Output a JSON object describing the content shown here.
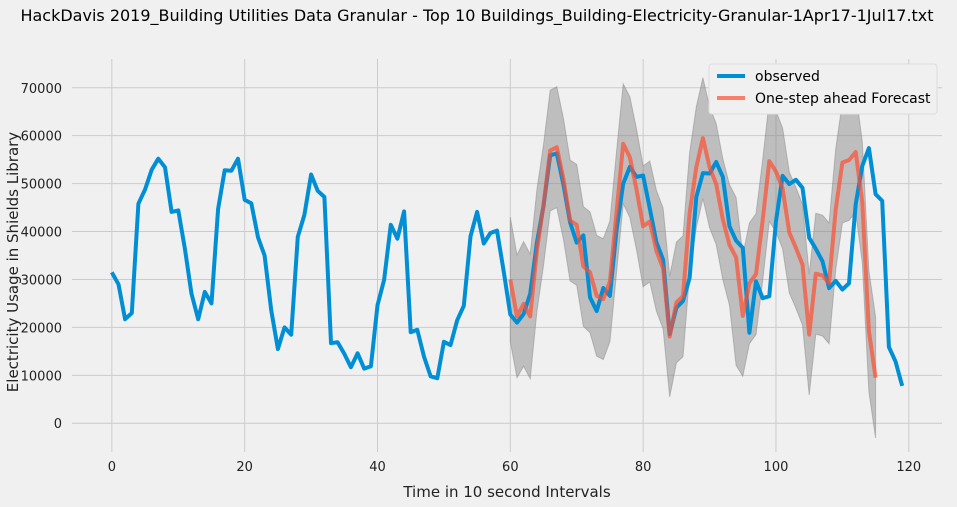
{
  "chart_data": {
    "type": "line",
    "title": "HackDavis 2019_Building Utilities Data Granular - Top 10 Buildings_Building-Electricity-Granular-1Apr17-1Jul17.txt",
    "xlabel": "Time in 10 second Intervals",
    "ylabel": "Electricity Usage in Shields Library",
    "xlim": [
      -6,
      125
    ],
    "ylim": [
      -6000,
      76000
    ],
    "xticks": [
      0,
      20,
      40,
      60,
      80,
      100,
      120
    ],
    "yticks": [
      0,
      10000,
      20000,
      30000,
      40000,
      50000,
      60000,
      70000
    ],
    "grid": true,
    "legend_position": "top-right",
    "series": [
      {
        "name": "observed",
        "color": "#008fd5",
        "x_start": 0,
        "values": [
          31500,
          29000,
          21700,
          23000,
          45800,
          48800,
          52900,
          55200,
          53400,
          44100,
          44400,
          36400,
          27000,
          21700,
          27400,
          25000,
          44700,
          52800,
          52700,
          55200,
          46600,
          45900,
          38800,
          35000,
          23600,
          15500,
          20000,
          18500,
          38900,
          43500,
          51900,
          48500,
          47200,
          16700,
          16900,
          14500,
          11700,
          14600,
          11400,
          11900,
          24600,
          29900,
          41400,
          38500,
          44200,
          19000,
          19500,
          13900,
          9800,
          9400,
          17000,
          16300,
          21500,
          24500,
          39000,
          44100,
          37500,
          39700,
          40200,
          31700,
          22700,
          21000,
          22800,
          27000,
          37700,
          45300,
          55900,
          56300,
          49700,
          41900,
          37700,
          39200,
          26300,
          23400,
          28200,
          26600,
          40400,
          50000,
          53500,
          51400,
          51700,
          44800,
          37800,
          34100,
          18600,
          24100,
          25500,
          30300,
          47200,
          52200,
          52100,
          54500,
          51400,
          41100,
          38100,
          36600,
          18900,
          29600,
          26100,
          26500,
          42200,
          51600,
          49900,
          50800,
          49100,
          38700,
          36400,
          33800,
          28200,
          29700,
          27900,
          29200,
          45700,
          53700,
          57400,
          47800,
          46400,
          15900,
          12900,
          7800
        ]
      },
      {
        "name": "One-step ahead Forecast",
        "color": "#fc4f30",
        "x_start": 60,
        "values": [
          30000,
          22300,
          24900,
          22300,
          36000,
          45500,
          56900,
          57600,
          50900,
          42300,
          41400,
          32700,
          31500,
          26600,
          25900,
          29600,
          44200,
          58300,
          55500,
          48800,
          41100,
          42100,
          36000,
          32300,
          18100,
          25200,
          26500,
          43800,
          53400,
          59500,
          53400,
          49900,
          42600,
          37200,
          34600,
          22400,
          29200,
          31100,
          42400,
          54700,
          52500,
          49000,
          39800,
          36600,
          33100,
          18500,
          31200,
          30800,
          29200,
          44600,
          54400,
          54900,
          56600,
          46100,
          19200,
          9500
        ]
      }
    ],
    "confidence_band": {
      "color": "#808080",
      "x_start": 60,
      "lower": [
        17000,
        9500,
        11900,
        9300,
        23300,
        32900,
        44300,
        45000,
        38300,
        29700,
        28800,
        20200,
        18900,
        14000,
        13300,
        17000,
        31600,
        45800,
        42900,
        36200,
        28500,
        29500,
        23400,
        19700,
        5500,
        12600,
        13900,
        31200,
        40800,
        46900,
        40800,
        37300,
        30000,
        24600,
        12100,
        9800,
        16600,
        18500,
        29800,
        42100,
        39900,
        36400,
        27200,
        24000,
        20500,
        5900,
        18600,
        18200,
        16600,
        32000,
        41800,
        42300,
        44000,
        33500,
        6600,
        -3100
      ],
      "upper": [
        43000,
        35100,
        37900,
        35300,
        48700,
        58100,
        69500,
        70200,
        63500,
        54900,
        54000,
        45200,
        44100,
        39200,
        38500,
        42200,
        56800,
        70800,
        68100,
        61400,
        53700,
        54700,
        48600,
        44900,
        30700,
        37800,
        39100,
        56400,
        66000,
        72100,
        66000,
        62500,
        55200,
        49800,
        47100,
        35000,
        41800,
        43700,
        55000,
        67300,
        65100,
        61600,
        52400,
        49200,
        45700,
        31100,
        43800,
        43400,
        41800,
        57200,
        67000,
        67500,
        69200,
        58700,
        31800,
        22100
      ]
    }
  }
}
